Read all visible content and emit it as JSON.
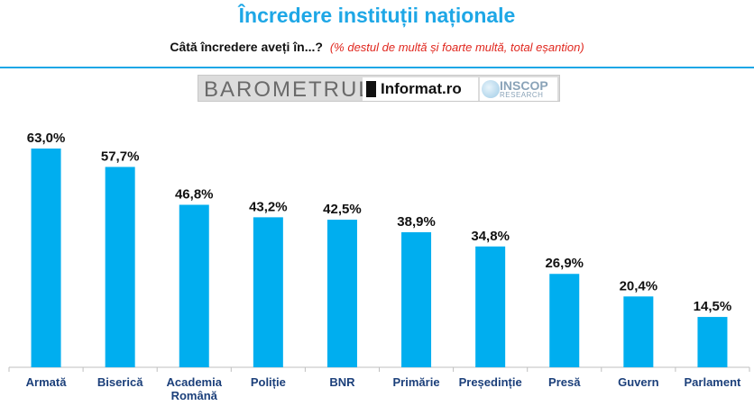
{
  "header": {
    "title": "Încredere instituții naționale",
    "question": "Câtă încredere aveți în...?",
    "note": "(% destul de multă și foarte multă, total eșantion)"
  },
  "logos": {
    "barometrul": "BAROMETRUL",
    "informat": "Informat.ro",
    "inscop": "INSCOP",
    "research": "RESEARCH"
  },
  "colors": {
    "bar": "#00AEEF",
    "title": "#1EA7E6",
    "note": "#E0261D",
    "category": "#1B3F7A"
  },
  "chart_data": {
    "type": "bar",
    "title": "Încredere instituții naționale",
    "categories": [
      "Armată",
      "Biserică",
      "Academia Română",
      "Poliție",
      "BNR",
      "Primărie",
      "Președinție",
      "Presă",
      "Guvern",
      "Parlament"
    ],
    "category_lines": [
      [
        "Armată"
      ],
      [
        "Biserică"
      ],
      [
        "Academia",
        "Română"
      ],
      [
        "Poliție"
      ],
      [
        "BNR"
      ],
      [
        "Primărie"
      ],
      [
        "Președinție"
      ],
      [
        "Presă"
      ],
      [
        "Guvern"
      ],
      [
        "Parlament"
      ]
    ],
    "values": [
      63.0,
      57.7,
      46.8,
      43.2,
      42.5,
      38.9,
      34.8,
      26.9,
      20.4,
      14.5
    ],
    "value_labels": [
      "63,0%",
      "57,7%",
      "46,8%",
      "43,2%",
      "42,5%",
      "38,9%",
      "34,8%",
      "26,9%",
      "20,4%",
      "14,5%"
    ],
    "unit": "%",
    "ylim": [
      0,
      63
    ],
    "grid": false,
    "legend": "none"
  }
}
